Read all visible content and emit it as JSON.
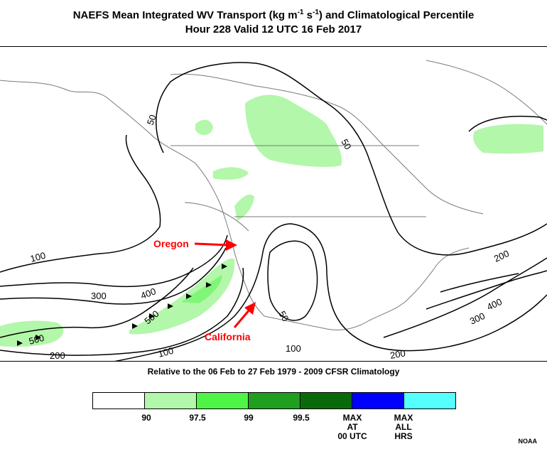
{
  "title": {
    "prefix": "NAEFS Mean Integrated WV Transport (kg m",
    "sup1": "-1",
    "middle": " s",
    "sup2": "-1",
    "suffix": ") and Climatological Percentile",
    "line2": "Hour 228 Valid 12 UTC 16 Feb 2017"
  },
  "subtitle": "Relative to the 06 Feb to 27 Feb 1979 - 2009 CFSR Climatology",
  "annotations": {
    "oregon": "Oregon",
    "california": "California",
    "color": "#ff0000"
  },
  "contour_labels": [
    "50",
    "50",
    "100",
    "300",
    "400",
    "500",
    "500",
    "200",
    "100",
    "50",
    "100",
    "200",
    "200",
    "400",
    "300"
  ],
  "legend": {
    "colors": [
      "#ffffff",
      "#b3f7aa",
      "#4ef547",
      "#1f9e1f",
      "#0a6a0a",
      "#0000ff",
      "#55ffff"
    ],
    "ticks": [
      "90",
      "97.5",
      "99",
      "99.5",
      "MAX\nAT\n00 UTC",
      "MAX\nALL\nHRS"
    ]
  },
  "credit": "NOAA"
}
